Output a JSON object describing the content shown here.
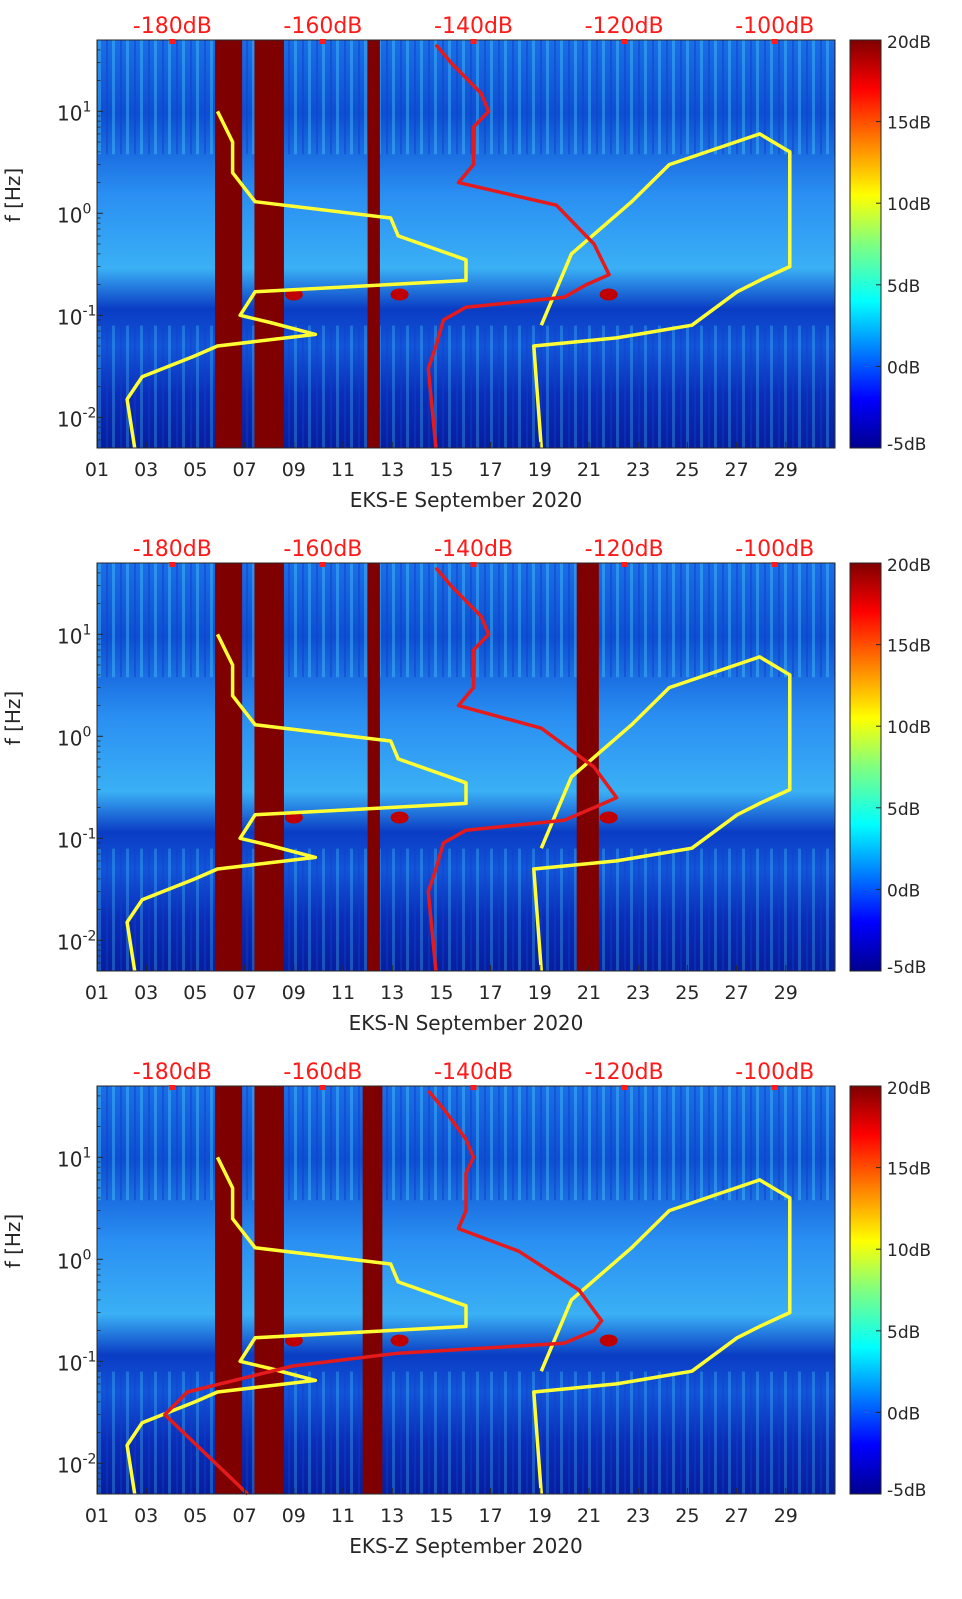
{
  "figure": {
    "colorbar": {
      "colors": [
        "#00008f",
        "#0000ff",
        "#0080ff",
        "#00ffff",
        "#80ff80",
        "#ffff00",
        "#ff8000",
        "#ff0000",
        "#800000"
      ],
      "ticks": [
        "20dB",
        "15dB",
        "10dB",
        "5dB",
        "0dB",
        "-5dB"
      ],
      "range": [
        -5,
        20
      ]
    },
    "colors": {
      "yellow_curve": "#ffff33",
      "red_curve": "#e41a1c",
      "top_labels": "#ff1a1a",
      "dark_band": "#7f0000"
    }
  },
  "chart_data": [
    {
      "type": "heatmap",
      "title": "",
      "xlabel": "EKS-E September 2020",
      "ylabel": "f [Hz]",
      "xlim": [
        1,
        31
      ],
      "ylim": [
        0.005,
        50
      ],
      "yscale": "log",
      "x_ticks": [
        "01",
        "03",
        "05",
        "07",
        "09",
        "11",
        "13",
        "15",
        "17",
        "19",
        "21",
        "23",
        "25",
        "27",
        "29"
      ],
      "y_ticks": [
        "10^1",
        "10^0",
        "10^-1",
        "10^-2"
      ],
      "top_ticks": [
        "-180dB",
        "-160dB",
        "-140dB",
        "-120dB",
        "-100dB"
      ],
      "top_axis_range_db": [
        -190,
        -92
      ],
      "dark_bands_days": [
        [
          5.8,
          6.9
        ],
        [
          7.4,
          8.6
        ],
        [
          12.0,
          12.5
        ]
      ],
      "series": [
        {
          "name": "yellow",
          "x_db": [
            -174,
            -172,
            -172,
            -169,
            -151,
            -150,
            -141,
            -141,
            -169,
            -171,
            -167,
            -161,
            -174,
            -177,
            -184,
            -186,
            -185
          ],
          "f": [
            10,
            5,
            2.5,
            1.3,
            0.9,
            0.6,
            0.35,
            0.22,
            0.17,
            0.1,
            0.085,
            0.065,
            0.05,
            0.04,
            0.025,
            0.015,
            0.005
          ]
        },
        {
          "name": "yellow-right",
          "x_db": [
            -131,
            -132,
            -121,
            -111,
            -105,
            -102,
            -98,
            -98,
            -102,
            -114,
            -119,
            -127,
            -131
          ],
          "f": [
            0.005,
            0.05,
            0.06,
            0.08,
            0.17,
            0.22,
            0.3,
            4,
            6,
            3,
            1.3,
            0.4,
            0.08
          ]
        },
        {
          "name": "red",
          "x_db": [
            -145,
            -143,
            -139,
            -138,
            -140,
            -140,
            -142,
            -129,
            -124,
            -122,
            -125,
            -128,
            -141,
            -144,
            -145,
            -146,
            -145
          ],
          "f": [
            45,
            30,
            15,
            10,
            7,
            3,
            2,
            1.2,
            0.5,
            0.25,
            0.2,
            0.15,
            0.12,
            0.09,
            0.05,
            0.03,
            0.005
          ]
        }
      ]
    },
    {
      "type": "heatmap",
      "title": "",
      "xlabel": "EKS-N September 2020",
      "ylabel": "f [Hz]",
      "xlim": [
        1,
        31
      ],
      "ylim": [
        0.005,
        50
      ],
      "yscale": "log",
      "x_ticks": [
        "01",
        "03",
        "05",
        "07",
        "09",
        "11",
        "13",
        "15",
        "17",
        "19",
        "21",
        "23",
        "25",
        "27",
        "29"
      ],
      "y_ticks": [
        "10^1",
        "10^0",
        "10^-1",
        "10^-2"
      ],
      "top_ticks": [
        "-180dB",
        "-160dB",
        "-140dB",
        "-120dB",
        "-100dB"
      ],
      "top_axis_range_db": [
        -190,
        -92
      ],
      "dark_bands_days": [
        [
          5.8,
          6.9
        ],
        [
          7.4,
          8.6
        ],
        [
          12.0,
          12.5
        ],
        [
          20.5,
          21.4
        ]
      ],
      "series": [
        {
          "name": "yellow",
          "x_db": [
            -174,
            -172,
            -172,
            -169,
            -151,
            -150,
            -141,
            -141,
            -169,
            -171,
            -167,
            -161,
            -174,
            -177,
            -184,
            -186,
            -185
          ],
          "f": [
            10,
            5,
            2.5,
            1.3,
            0.9,
            0.6,
            0.35,
            0.22,
            0.17,
            0.1,
            0.085,
            0.065,
            0.05,
            0.04,
            0.025,
            0.015,
            0.005
          ]
        },
        {
          "name": "yellow-right",
          "x_db": [
            -131,
            -132,
            -121,
            -111,
            -105,
            -102,
            -98,
            -98,
            -102,
            -114,
            -119,
            -127,
            -131
          ],
          "f": [
            0.005,
            0.05,
            0.06,
            0.08,
            0.17,
            0.22,
            0.3,
            4,
            6,
            3,
            1.3,
            0.4,
            0.08
          ]
        },
        {
          "name": "red",
          "x_db": [
            -145,
            -143,
            -139,
            -138,
            -140,
            -140,
            -142,
            -131,
            -124,
            -121,
            -124,
            -128,
            -141,
            -144,
            -145,
            -146,
            -145
          ],
          "f": [
            45,
            30,
            15,
            10,
            7,
            3,
            2,
            1.2,
            0.5,
            0.25,
            0.2,
            0.15,
            0.12,
            0.09,
            0.05,
            0.03,
            0.005
          ]
        }
      ]
    },
    {
      "type": "heatmap",
      "title": "",
      "xlabel": "EKS-Z September 2020",
      "ylabel": "f [Hz]",
      "xlim": [
        1,
        31
      ],
      "ylim": [
        0.005,
        50
      ],
      "yscale": "log",
      "x_ticks": [
        "01",
        "03",
        "05",
        "07",
        "09",
        "11",
        "13",
        "15",
        "17",
        "19",
        "21",
        "23",
        "25",
        "27",
        "29"
      ],
      "y_ticks": [
        "10^1",
        "10^0",
        "10^-1",
        "10^-2"
      ],
      "top_ticks": [
        "-180dB",
        "-160dB",
        "-140dB",
        "-120dB",
        "-100dB"
      ],
      "top_axis_range_db": [
        -190,
        -92
      ],
      "dark_bands_days": [
        [
          5.8,
          6.9
        ],
        [
          7.4,
          8.6
        ],
        [
          11.8,
          12.6
        ]
      ],
      "series": [
        {
          "name": "yellow",
          "x_db": [
            -174,
            -172,
            -172,
            -169,
            -151,
            -150,
            -141,
            -141,
            -169,
            -171,
            -167,
            -161,
            -174,
            -177,
            -184,
            -186,
            -185
          ],
          "f": [
            10,
            5,
            2.5,
            1.3,
            0.9,
            0.6,
            0.35,
            0.22,
            0.17,
            0.1,
            0.085,
            0.065,
            0.05,
            0.04,
            0.025,
            0.015,
            0.005
          ]
        },
        {
          "name": "yellow-right",
          "x_db": [
            -131,
            -132,
            -121,
            -111,
            -105,
            -102,
            -98,
            -98,
            -102,
            -114,
            -119,
            -127,
            -131
          ],
          "f": [
            0.005,
            0.05,
            0.06,
            0.08,
            0.17,
            0.22,
            0.3,
            4,
            6,
            3,
            1.3,
            0.4,
            0.08
          ]
        },
        {
          "name": "red",
          "x_db": [
            -146,
            -144,
            -141,
            -140,
            -141,
            -141,
            -142,
            -134,
            -126,
            -123,
            -124,
            -128,
            -150,
            -164,
            -178,
            -181,
            -170
          ],
          "f": [
            45,
            30,
            15,
            10,
            7,
            3,
            2,
            1.2,
            0.5,
            0.25,
            0.2,
            0.15,
            0.12,
            0.09,
            0.05,
            0.03,
            0.005
          ]
        }
      ]
    }
  ]
}
